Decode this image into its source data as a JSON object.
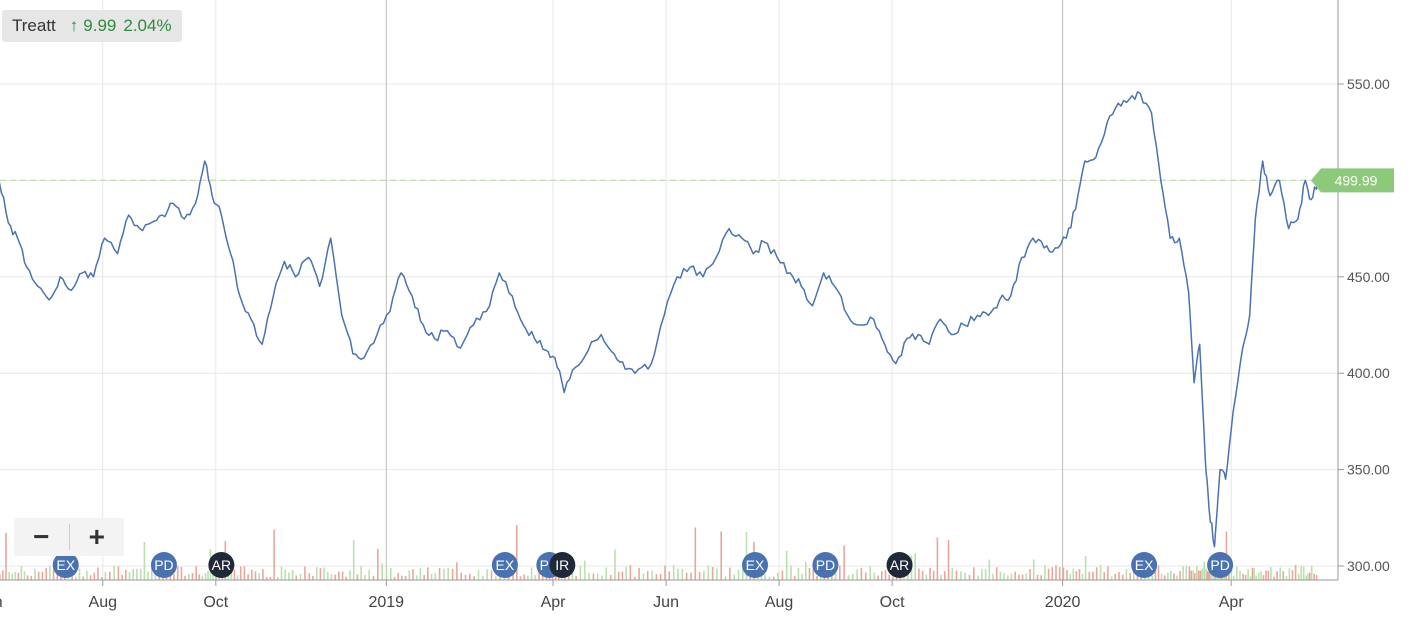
{
  "legend": {
    "name": "Treatt",
    "change_arrow": "↑",
    "change": "9.99",
    "change_pct": "2.04%",
    "change_color": "#2e8b3e"
  },
  "zoom": {
    "out_label": "−",
    "in_label": "+"
  },
  "price_label": {
    "text": "499.99",
    "color": "#8cc97a"
  },
  "colors": {
    "line": "#4a72b0",
    "up_volume": "#b9e0ae",
    "down_volume": "#e9a79a",
    "event_blue": "#4a72b0",
    "event_dark": "#1f2937"
  },
  "chart_data": {
    "type": "line",
    "title": "",
    "xlabel": "",
    "ylabel": "",
    "ylim": [
      290,
      595
    ],
    "xlim": [
      "2018-06-01",
      "2020-05-20"
    ],
    "x_ticks": [
      {
        "date": "2018-06-01",
        "label": "Jun"
      },
      {
        "date": "2018-08-01",
        "label": "Aug"
      },
      {
        "date": "2018-10-01",
        "label": "Oct"
      },
      {
        "date": "2019-01-01",
        "label": "2019"
      },
      {
        "date": "2019-04-01",
        "label": "Apr"
      },
      {
        "date": "2019-06-01",
        "label": "Jun"
      },
      {
        "date": "2019-08-01",
        "label": "Aug"
      },
      {
        "date": "2019-10-01",
        "label": "Oct"
      },
      {
        "date": "2020-01-01",
        "label": "2020"
      },
      {
        "date": "2020-04-01",
        "label": "Apr"
      }
    ],
    "y_ticks": [
      {
        "value": 300,
        "label": "300.00"
      },
      {
        "value": 350,
        "label": "350.00"
      },
      {
        "value": 400,
        "label": "400.00"
      },
      {
        "value": 450,
        "label": "450.00"
      },
      {
        "value": 500,
        "label": "500.00"
      },
      {
        "value": 550,
        "label": "550.00"
      }
    ],
    "grid": true,
    "reference_line": 499.99,
    "series": [
      {
        "values": [
          [
            "2018-06-01",
            484
          ],
          [
            "2018-06-06",
            500
          ],
          [
            "2018-06-11",
            478
          ],
          [
            "2018-06-16",
            470
          ],
          [
            "2018-06-21",
            455
          ],
          [
            "2018-06-27",
            445
          ],
          [
            "2018-07-03",
            438
          ],
          [
            "2018-07-09",
            450
          ],
          [
            "2018-07-15",
            443
          ],
          [
            "2018-07-21",
            452
          ],
          [
            "2018-07-27",
            450
          ],
          [
            "2018-08-02",
            470
          ],
          [
            "2018-08-09",
            462
          ],
          [
            "2018-08-15",
            482
          ],
          [
            "2018-08-21",
            475
          ],
          [
            "2018-08-27",
            478
          ],
          [
            "2018-09-02",
            482
          ],
          [
            "2018-09-08",
            488
          ],
          [
            "2018-09-14",
            480
          ],
          [
            "2018-09-20",
            488
          ],
          [
            "2018-09-25",
            510
          ],
          [
            "2018-09-29",
            492
          ],
          [
            "2018-10-04",
            482
          ],
          [
            "2018-10-09",
            462
          ],
          [
            "2018-10-14",
            440
          ],
          [
            "2018-10-20",
            428
          ],
          [
            "2018-10-26",
            415
          ],
          [
            "2018-11-01",
            440
          ],
          [
            "2018-11-07",
            458
          ],
          [
            "2018-11-13",
            450
          ],
          [
            "2018-11-20",
            460
          ],
          [
            "2018-11-26",
            445
          ],
          [
            "2018-12-02",
            470
          ],
          [
            "2018-12-08",
            430
          ],
          [
            "2018-12-14",
            410
          ],
          [
            "2018-12-20",
            408
          ],
          [
            "2018-12-27",
            420
          ],
          [
            "2019-01-03",
            432
          ],
          [
            "2019-01-09",
            452
          ],
          [
            "2019-01-15",
            440
          ],
          [
            "2019-01-21",
            425
          ],
          [
            "2019-01-27",
            418
          ],
          [
            "2019-02-03",
            422
          ],
          [
            "2019-02-10",
            413
          ],
          [
            "2019-02-17",
            425
          ],
          [
            "2019-02-24",
            432
          ],
          [
            "2019-03-03",
            452
          ],
          [
            "2019-03-10",
            440
          ],
          [
            "2019-03-16",
            425
          ],
          [
            "2019-03-22",
            418
          ],
          [
            "2019-03-28",
            412
          ],
          [
            "2019-04-02",
            408
          ],
          [
            "2019-04-07",
            390
          ],
          [
            "2019-04-13",
            403
          ],
          [
            "2019-04-20",
            412
          ],
          [
            "2019-04-27",
            420
          ],
          [
            "2019-05-04",
            410
          ],
          [
            "2019-05-10",
            402
          ],
          [
            "2019-05-17",
            402
          ],
          [
            "2019-05-24",
            405
          ],
          [
            "2019-05-31",
            430
          ],
          [
            "2019-06-07",
            450
          ],
          [
            "2019-06-14",
            455
          ],
          [
            "2019-06-21",
            450
          ],
          [
            "2019-06-28",
            460
          ],
          [
            "2019-07-05",
            475
          ],
          [
            "2019-07-12",
            470
          ],
          [
            "2019-07-18",
            462
          ],
          [
            "2019-07-24",
            468
          ],
          [
            "2019-07-31",
            460
          ],
          [
            "2019-08-07",
            452
          ],
          [
            "2019-08-13",
            445
          ],
          [
            "2019-08-19",
            435
          ],
          [
            "2019-08-25",
            452
          ],
          [
            "2019-08-31",
            445
          ],
          [
            "2019-09-07",
            430
          ],
          [
            "2019-09-14",
            425
          ],
          [
            "2019-09-21",
            428
          ],
          [
            "2019-09-27",
            415
          ],
          [
            "2019-10-03",
            405
          ],
          [
            "2019-10-09",
            418
          ],
          [
            "2019-10-15",
            420
          ],
          [
            "2019-10-21",
            415
          ],
          [
            "2019-10-27",
            428
          ],
          [
            "2019-11-02",
            420
          ],
          [
            "2019-11-09",
            425
          ],
          [
            "2019-11-16",
            430
          ],
          [
            "2019-11-22",
            430
          ],
          [
            "2019-11-28",
            438
          ],
          [
            "2019-12-04",
            440
          ],
          [
            "2019-12-10",
            460
          ],
          [
            "2019-12-16",
            470
          ],
          [
            "2019-12-22",
            465
          ],
          [
            "2019-12-28",
            465
          ],
          [
            "2020-01-03",
            470
          ],
          [
            "2020-01-08",
            485
          ],
          [
            "2020-01-13",
            510
          ],
          [
            "2020-01-19",
            512
          ],
          [
            "2020-01-25",
            530
          ],
          [
            "2020-01-31",
            540
          ],
          [
            "2020-02-06",
            542
          ],
          [
            "2020-02-12",
            545
          ],
          [
            "2020-02-18",
            535
          ],
          [
            "2020-02-23",
            500
          ],
          [
            "2020-02-28",
            470
          ],
          [
            "2020-03-04",
            470
          ],
          [
            "2020-03-09",
            442
          ],
          [
            "2020-03-12",
            395
          ],
          [
            "2020-03-15",
            415
          ],
          [
            "2020-03-18",
            355
          ],
          [
            "2020-03-20",
            330
          ],
          [
            "2020-03-23",
            310
          ],
          [
            "2020-03-26",
            350
          ],
          [
            "2020-03-29",
            345
          ],
          [
            "2020-04-02",
            380
          ],
          [
            "2020-04-07",
            412
          ],
          [
            "2020-04-11",
            430
          ],
          [
            "2020-04-14",
            480
          ],
          [
            "2020-04-18",
            510
          ],
          [
            "2020-04-22",
            492
          ],
          [
            "2020-04-27",
            500
          ],
          [
            "2020-05-02",
            475
          ],
          [
            "2020-05-07",
            480
          ],
          [
            "2020-05-11",
            500
          ],
          [
            "2020-05-14",
            490
          ],
          [
            "2020-05-18",
            500
          ]
        ]
      }
    ],
    "events": [
      {
        "date": "2018-07-12",
        "label": "EX",
        "style": "blue"
      },
      {
        "date": "2018-09-03",
        "label": "PD",
        "style": "blue"
      },
      {
        "date": "2018-10-04",
        "label": "AR",
        "style": "dark"
      },
      {
        "date": "2019-03-06",
        "label": "EX",
        "style": "blue"
      },
      {
        "date": "2019-03-30",
        "label": "PD",
        "style": "blue"
      },
      {
        "date": "2019-04-06",
        "label": "IR",
        "style": "dark"
      },
      {
        "date": "2019-07-19",
        "label": "EX",
        "style": "blue"
      },
      {
        "date": "2019-08-26",
        "label": "PD",
        "style": "blue"
      },
      {
        "date": "2019-10-05",
        "label": "AR",
        "style": "dark"
      },
      {
        "date": "2020-02-14",
        "label": "EX",
        "style": "blue"
      },
      {
        "date": "2020-03-26",
        "label": "PD",
        "style": "blue"
      }
    ]
  }
}
